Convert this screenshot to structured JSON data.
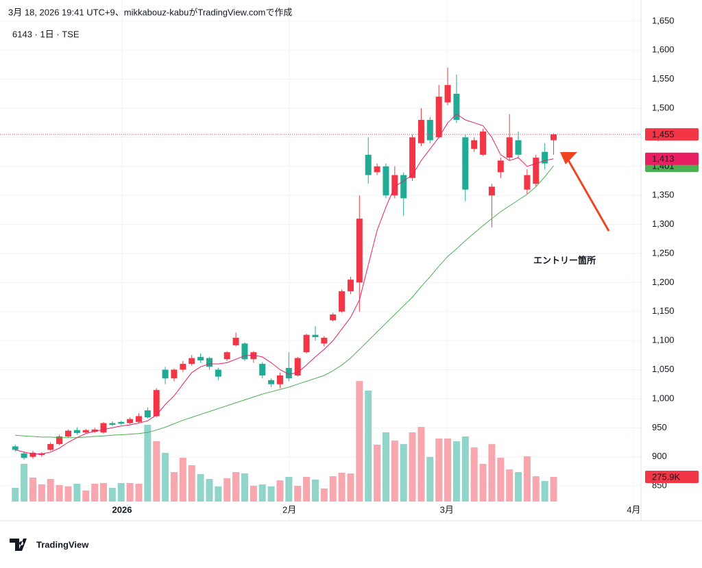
{
  "chart_data": {
    "type": "candlestick",
    "subtitle": "3月 18, 2026 19:41 UTC+9、mikkabouz-kabuがTradingView.comで作成",
    "title": "6143 · 1日 · TSE",
    "watermark": "TradingView",
    "annotation": "エントリー箇所",
    "annotation_color": "#f0441e",
    "grid": true,
    "x": [
      0,
      1,
      2,
      3,
      4,
      5,
      6,
      7,
      8,
      9,
      10,
      11,
      12,
      13,
      14,
      15,
      16,
      17,
      18,
      19,
      20,
      21,
      22,
      23,
      24,
      25,
      26,
      27,
      28,
      29,
      30,
      31,
      32,
      33,
      34,
      35,
      36,
      37,
      38,
      39,
      40,
      41,
      42,
      43,
      44,
      45,
      46,
      47,
      48,
      49,
      50,
      51,
      52,
      53,
      54,
      55,
      56,
      57,
      58,
      59,
      60,
      61
    ],
    "xlim": [
      -0.95,
      70.9
    ],
    "xticks": [
      {
        "value": 12.1,
        "label": "2026"
      },
      {
        "value": 31.06,
        "label": "2月"
      },
      {
        "value": 48.9,
        "label": "3月"
      },
      {
        "value": 70.07,
        "label": "4月"
      }
    ],
    "ylim": [
      823,
      1651
    ],
    "yticks": [
      850,
      900,
      950,
      {
        "value": 1000,
        "label": "1,000"
      },
      {
        "value": 1050,
        "label": "1,050"
      },
      {
        "value": 1100,
        "label": "1,100"
      },
      {
        "value": 1150,
        "label": "1,150"
      },
      {
        "value": 1200,
        "label": "1,200"
      },
      {
        "value": 1250,
        "label": "1,250"
      },
      {
        "value": 1300,
        "label": "1,300"
      },
      {
        "value": 1350,
        "label": "1,350"
      },
      {
        "value": 1400,
        "label": "1,400"
      },
      {
        "value": 1450,
        "label": "1,450"
      },
      {
        "value": 1500,
        "label": "1,500"
      },
      {
        "value": 1550,
        "label": "1,550"
      },
      {
        "value": 1600,
        "label": "1,600"
      },
      {
        "value": 1650,
        "label": "1,650"
      }
    ],
    "up_color": "#f23645",
    "down_color": "#22ab94",
    "open": [
      918,
      906,
      900,
      903,
      912,
      922,
      935,
      946,
      942,
      943,
      942,
      958,
      960,
      958,
      960,
      980,
      970,
      1050,
      1035,
      1050,
      1060,
      1072,
      1070,
      1050,
      1068,
      1092,
      1095,
      1068,
      1060,
      1032,
      1025,
      1053,
      1040,
      1080,
      1110,
      1095,
      1135,
      1150,
      1185,
      1200,
      1420,
      1390,
      1400,
      1350,
      1385,
      1380,
      1440,
      1480,
      1450,
      1510,
      1525,
      1450,
      1430,
      1420,
      1350,
      1390,
      1415,
      1445,
      1360,
      1370,
      1425,
      1445
    ],
    "high": [
      921,
      909,
      910,
      908,
      925,
      938,
      947,
      951,
      948,
      950,
      960,
      961,
      962,
      968,
      975,
      985,
      1018,
      1055,
      1052,
      1065,
      1075,
      1078,
      1072,
      1053,
      1082,
      1114,
      1097,
      1082,
      1063,
      1035,
      1045,
      1080,
      1072,
      1112,
      1125,
      1108,
      1148,
      1188,
      1210,
      1350,
      1450,
      1405,
      1405,
      1400,
      1390,
      1455,
      1500,
      1485,
      1540,
      1570,
      1558,
      1455,
      1450,
      1465,
      1370,
      1415,
      1490,
      1460,
      1395,
      1420,
      1440,
      1457
    ],
    "low": [
      909,
      895,
      897,
      900,
      910,
      920,
      933,
      938,
      940,
      941,
      940,
      953,
      955,
      956,
      958,
      966,
      968,
      1025,
      1030,
      1046,
      1057,
      1062,
      1050,
      1032,
      1065,
      1090,
      1065,
      1062,
      1035,
      1020,
      1018,
      1030,
      1038,
      1078,
      1100,
      1090,
      1133,
      1148,
      1180,
      1150,
      1370,
      1385,
      1345,
      1345,
      1315,
      1375,
      1435,
      1440,
      1448,
      1505,
      1475,
      1340,
      1425,
      1418,
      1295,
      1380,
      1410,
      1415,
      1352,
      1365,
      1395,
      1420
    ],
    "close": [
      912,
      898,
      907,
      906,
      922,
      935,
      945,
      941,
      946,
      947,
      958,
      955,
      957,
      965,
      970,
      968,
      1015,
      1035,
      1050,
      1060,
      1070,
      1066,
      1055,
      1038,
      1080,
      1105,
      1068,
      1080,
      1040,
      1025,
      1040,
      1035,
      1070,
      1110,
      1106,
      1105,
      1145,
      1185,
      1205,
      1310,
      1385,
      1400,
      1350,
      1385,
      1345,
      1450,
      1480,
      1445,
      1520,
      1540,
      1480,
      1360,
      1445,
      1460,
      1365,
      1410,
      1450,
      1420,
      1385,
      1415,
      1405,
      1455
    ],
    "moving_averages": [
      {
        "color": "#4caf50",
        "values": [
          937,
          936,
          935,
          934,
          934,
          933,
          933,
          933,
          934,
          935,
          936,
          937,
          938,
          939,
          940,
          942,
          946,
          951,
          957,
          963,
          968,
          973,
          978,
          983,
          988,
          993,
          998,
          1003,
          1008,
          1012,
          1016,
          1020,
          1025,
          1030,
          1035,
          1040,
          1048,
          1058,
          1070,
          1085,
          1100,
          1115,
          1130,
          1145,
          1160,
          1175,
          1193,
          1210,
          1228,
          1245,
          1258,
          1272,
          1285,
          1298,
          1310,
          1322,
          1332,
          1342,
          1352,
          1365,
          1382,
          1401
        ]
      },
      {
        "color": "#e91e63",
        "values": [
          912,
          908,
          905,
          905,
          908,
          915,
          925,
          933,
          940,
          944,
          947,
          950,
          953,
          955,
          958,
          962,
          972,
          990,
          1005,
          1025,
          1045,
          1055,
          1060,
          1060,
          1062,
          1068,
          1074,
          1075,
          1072,
          1062,
          1050,
          1042,
          1045,
          1058,
          1072,
          1085,
          1100,
          1120,
          1140,
          1170,
          1230,
          1290,
          1330,
          1365,
          1375,
          1385,
          1410,
          1430,
          1450,
          1475,
          1490,
          1480,
          1475,
          1470,
          1450,
          1420,
          1410,
          1415,
          1400,
          1405,
          1410,
          1413
        ]
      }
    ],
    "price_tags": [
      {
        "value": 1401,
        "label": "1,401",
        "color": "#4caf50"
      },
      {
        "value": 1413,
        "label": "1,413",
        "color": "#e91e63"
      },
      {
        "value": 1455,
        "label": "1,455",
        "color": "#f23645"
      }
    ],
    "volume": {
      "ylim": [
        0,
        5380000
      ],
      "up_color": "#f7a7ad",
      "down_color": "#91d4c9",
      "values": [
        153000,
        421000,
        268000,
        192000,
        253000,
        184000,
        169000,
        199000,
        123000,
        199000,
        207000,
        153000,
        207000,
        207000,
        199000,
        858000,
        674000,
        544000,
        329000,
        490000,
        406000,
        306000,
        253000,
        169000,
        260000,
        329000,
        314000,
        176000,
        192000,
        169000,
        237000,
        276000,
        176000,
        276000,
        245000,
        146000,
        283000,
        322000,
        314000,
        1348000,
        1241000,
        636000,
        774000,
        682000,
        643000,
        774000,
        835000,
        498000,
        705000,
        705000,
        674000,
        728000,
        605000,
        421000,
        643000,
        490000,
        360000,
        329000,
        506000,
        283000,
        230000,
        275900
      ],
      "tag": {
        "value": 275900,
        "label": "275.9K",
        "color": "#f23645"
      }
    }
  }
}
